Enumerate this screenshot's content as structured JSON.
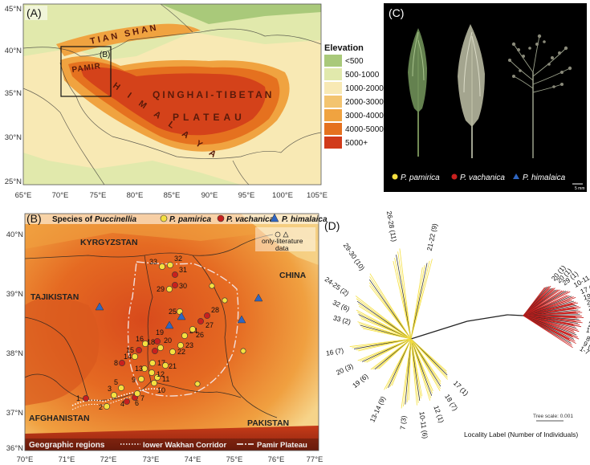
{
  "panelA": {
    "label": "(A)",
    "lon_ticks": [
      "65°E",
      "70°E",
      "75°E",
      "80°E",
      "85°E",
      "90°E",
      "95°E",
      "100°E",
      "105°E"
    ],
    "lat_ticks": [
      "45°N",
      "40°N",
      "35°N",
      "30°N",
      "25°N"
    ],
    "inset_label": "(B)",
    "regions": {
      "tianshan": "TIAN SHAN",
      "pamir": "PAMIR",
      "himalaya": "HIMALAYA",
      "qt1": "QINGHAI-TIBETAN",
      "qt2": "PLATEAU"
    },
    "legend_title": "Elevation",
    "legend": [
      {
        "label": "<500",
        "color": "#a9c97a"
      },
      {
        "label": "500-1000",
        "color": "#e1e9ac"
      },
      {
        "label": "1000-2000",
        "color": "#f8e9b4"
      },
      {
        "label": "2000-3000",
        "color": "#f3c470"
      },
      {
        "label": "3000-4000",
        "color": "#f0a340"
      },
      {
        "label": "4000-5000",
        "color": "#e5711f"
      },
      {
        "label": "5000+",
        "color": "#d13a1a"
      }
    ]
  },
  "panelB": {
    "label": "(B)",
    "lon_ticks": [
      "70°E",
      "71°E",
      "72°E",
      "73°E",
      "74°E",
      "75°E",
      "76°E",
      "77°E"
    ],
    "lat_ticks": [
      "40°N",
      "39°N",
      "38°N",
      "37°N",
      "36°N"
    ],
    "legend": {
      "title_prefix": "Species of ",
      "title_genus": "Puccinellia",
      "sp1": "P. pamirica",
      "sp2": "P. vachanica",
      "sp3": "P. himalaica",
      "lit1": "only-literature",
      "lit2": "data"
    },
    "countries": {
      "kyrgyzstan": "KYRGYZSTAN",
      "tajikistan": "TAJIKISTAN",
      "china": "CHINA",
      "afghanistan": "AFGHANISTAN",
      "pakistan": "PAKISTAN"
    },
    "footer": {
      "title": "Geographic regions",
      "wakhan": "lower Wakhan Corridor",
      "pamir": "Pamir Plateau"
    },
    "site_labels": [
      "1",
      "2",
      "3",
      "4",
      "5",
      "6",
      "7",
      "8",
      "9",
      "10",
      "11",
      "12",
      "13",
      "14",
      "15",
      "16",
      "17",
      "18",
      "19",
      "20",
      "21",
      "22",
      "23",
      "24",
      "25",
      "26",
      "27",
      "28",
      "29",
      "30",
      "31",
      "32",
      "33"
    ]
  },
  "panelC": {
    "label": "(C)",
    "sp1": "P. pamirica",
    "sp2": "P. vachanica",
    "sp3": "P. himalaica",
    "scale": "5 mm"
  },
  "panelD": {
    "label": "(D)",
    "tree_scale": "Tree scale: 0.001",
    "caption": "Locality Label (Number of Individuals)",
    "tips": [
      "26-28 (11)",
      "21-22 (9)",
      "29-30 (10)",
      "24-25 (2)",
      "32 (6)",
      "33 (2)",
      "16 (7)",
      "20 (3)",
      "19 (6)",
      "13-14 (9)",
      "7 (3)",
      "10-11 (6)",
      "12 (1)",
      "18 (7)",
      "17 (1)",
      "20 (1)",
      "20 (1)",
      "29 (1)",
      "10-11 (5)",
      "17 (2)",
      "19 (2)",
      "21-23 (3)",
      "25 (1)",
      "31 (4)",
      "24 (1)",
      "24, 26 (2)",
      "15 (2)",
      "8 (1)",
      "9 (1)",
      "1-7 (7)"
    ]
  },
  "colors": {
    "pamirica": "#f5e040",
    "vachanica": "#c8201e",
    "himalaica": "#2f66c2"
  }
}
